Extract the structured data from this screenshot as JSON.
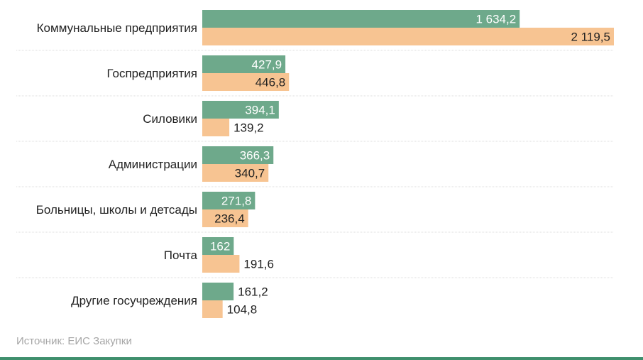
{
  "chart_data": {
    "type": "bar",
    "orientation": "horizontal",
    "categories": [
      "Коммунальные предприятия",
      "Госпредприятия",
      "Силовики",
      "Администрации",
      "Больницы, школы и детсады",
      "Почта",
      "Другие госучреждения"
    ],
    "series": [
      {
        "values": [
          1634.2,
          427.9,
          394.1,
          366.3,
          271.8,
          162,
          161.2
        ],
        "labels": [
          "1 634,2",
          "427,9",
          "394,1",
          "366,3",
          "271,8",
          "162",
          "161,2"
        ],
        "color": "#6ea98b"
      },
      {
        "values": [
          2119.5,
          446.8,
          139.2,
          340.7,
          236.4,
          191.6,
          104.8
        ],
        "labels": [
          "2 119,5",
          "446,8",
          "139,2",
          "340,7",
          "236,4",
          "191,6",
          "104,8"
        ],
        "color": "#f7c492"
      }
    ],
    "xlim": [
      0,
      2119.5
    ],
    "grid": false,
    "legend": "none"
  },
  "source": "Источник: ЕИС Закупки",
  "colors": {
    "separator": "#dddddd",
    "bottom_rule": "#3f8f6d",
    "label_inside": "#ffffff",
    "label_outside": "#222222"
  }
}
